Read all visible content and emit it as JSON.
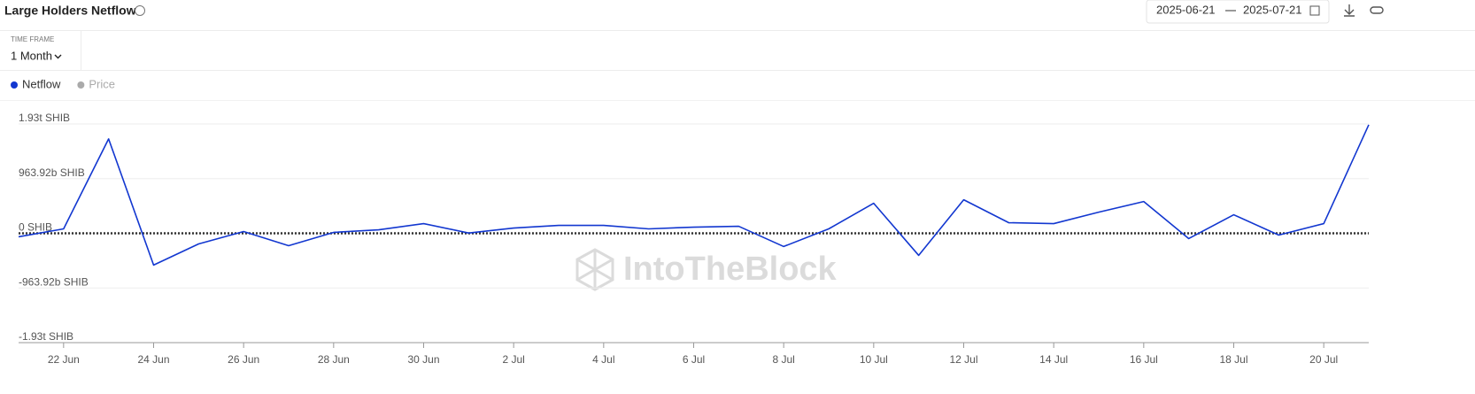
{
  "header": {
    "title": "Large Holders Netflow",
    "date_from": "2025-06-21",
    "date_to": "2025-07-21",
    "time_frame_label": "TIME FRAME",
    "time_frame": "1 Month"
  },
  "chart_data": {
    "type": "line",
    "watermark": "IntoTheBlock",
    "categories": [
      null,
      "22 Jun",
      null,
      "24 Jun",
      null,
      "26 Jun",
      null,
      "28 Jun",
      null,
      "30 Jun",
      null,
      "2 Jul",
      null,
      "4 Jul",
      null,
      "6 Jul",
      null,
      "8 Jul",
      null,
      "10 Jul",
      null,
      "12 Jul",
      null,
      "14 Jul",
      null,
      "16 Jul",
      null,
      "18 Jul",
      null,
      "20 Jul",
      null
    ],
    "series": [
      {
        "name": "Netflow",
        "color": "#1237d0",
        "values": [
          -62000000000,
          78000000000,
          1664000000000,
          -560000000000,
          -187000000000,
          31000000000,
          -218000000000,
          16000000000,
          62000000000,
          171000000000,
          5000000000,
          93000000000,
          140000000000,
          140000000000,
          78000000000,
          109000000000,
          124000000000,
          -233000000000,
          78000000000,
          529000000000,
          -389000000000,
          591000000000,
          187000000000,
          171000000000,
          373000000000,
          560000000000,
          -93000000000,
          327000000000,
          -31000000000,
          171000000000,
          1913000000000
        ]
      }
    ],
    "inactive_series": [
      {
        "name": "Price",
        "color": "#aaaaaa"
      }
    ],
    "ylim": [
      -1927840000000,
      1927840000000
    ],
    "yticks": [
      {
        "value": -1927840000000,
        "label": "-1.93t SHIB"
      },
      {
        "value": -963920000000,
        "label": "-963.92b SHIB"
      },
      {
        "value": 0,
        "label": "0 SHIB"
      },
      {
        "value": 963920000000,
        "label": "963.92b SHIB"
      },
      {
        "value": 1927840000000,
        "label": "1.93t SHIB"
      }
    ],
    "grid": true,
    "zero_line": true
  }
}
